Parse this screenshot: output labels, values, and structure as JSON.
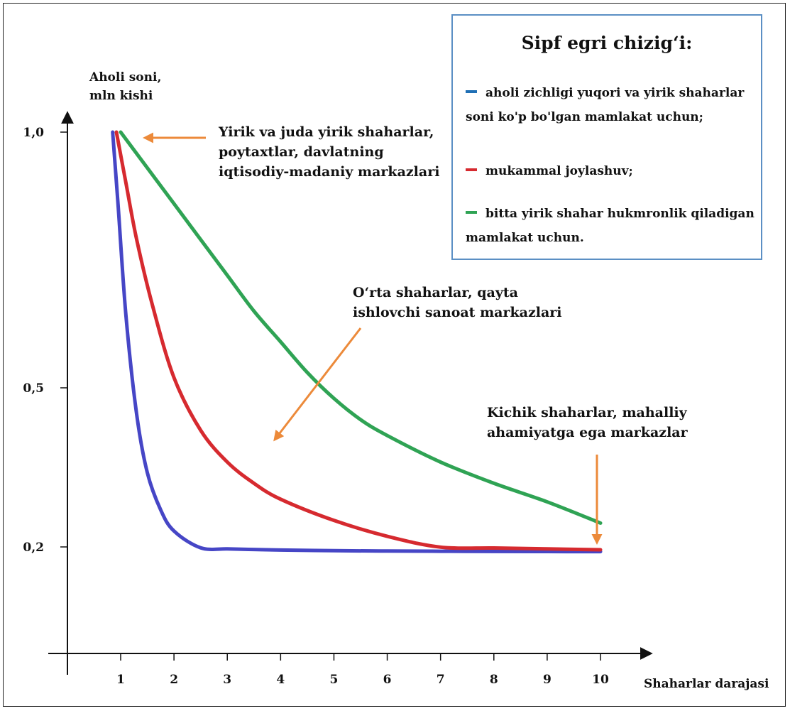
{
  "chart_data": {
    "type": "line",
    "ylabel": [
      "Aholi soni,",
      "mln kishi"
    ],
    "xlabel": "Shaharlar darajasi",
    "x_ticks": [
      "1",
      "2",
      "3",
      "4",
      "5",
      "6",
      "7",
      "8",
      "9",
      "10"
    ],
    "y_ticks": [
      {
        "value": 1.0,
        "label": "1,0"
      },
      {
        "value": 0.5,
        "label": "0,5"
      },
      {
        "value": 0.2,
        "label": "0,2"
      }
    ],
    "series": [
      {
        "name": "aholi zichligi yuqori va yirik shaharlar soni ko'p bo'lgan mamlakat uchun;",
        "color": "#4646c6",
        "x": [
          0.85,
          0.95,
          1.1,
          1.3,
          1.5,
          1.75,
          2,
          2.5,
          3,
          3.5,
          4,
          5,
          6,
          7,
          8,
          9,
          10
        ],
        "y": [
          1.0,
          0.86,
          0.64,
          0.45,
          0.34,
          0.27,
          0.23,
          0.18,
          0.155,
          0.14,
          0.128,
          0.113,
          0.105,
          0.1,
          0.096,
          0.093,
          0.091
        ]
      },
      {
        "name": "mukammal joylashuv;",
        "color": "#d62a2f",
        "x": [
          0.92,
          1.1,
          1.3,
          1.6,
          2,
          2.5,
          3,
          3.5,
          4,
          5,
          6,
          7,
          8,
          9,
          10
        ],
        "y": [
          1.0,
          0.9,
          0.79,
          0.66,
          0.52,
          0.42,
          0.36,
          0.32,
          0.29,
          0.25,
          0.22,
          0.195,
          0.175,
          0.155,
          0.135
        ]
      },
      {
        "name": "bitta yirik shahar hukmronlik qiladigan mamlakat uchun.",
        "color": "#2fa354",
        "x": [
          1.0,
          1.5,
          2,
          2.5,
          3,
          3.5,
          4,
          4.5,
          5,
          5.5,
          6,
          7,
          8,
          9,
          10
        ],
        "y": [
          1.0,
          0.93,
          0.86,
          0.79,
          0.72,
          0.65,
          0.59,
          0.53,
          0.48,
          0.44,
          0.41,
          0.36,
          0.32,
          0.285,
          0.245
        ]
      }
    ],
    "legend": {
      "title": "Sipf egri chizig‘i:",
      "placement": "top-right"
    },
    "annotations": [
      {
        "lines": [
          "Yirik va juda yirik shaharlar,",
          "poytaxtlar, davlatning",
          "iqtisodiy-madaniy markazlari"
        ]
      },
      {
        "lines": [
          "O‘rta shaharlar, qayta",
          "ishlovchi sanoat markazlari"
        ]
      },
      {
        "lines": [
          "Kichik shaharlar, mahalliy",
          "ahamiyatga ega markazlar"
        ]
      }
    ],
    "annotation_color": "#ec8a3a",
    "grid": false
  }
}
